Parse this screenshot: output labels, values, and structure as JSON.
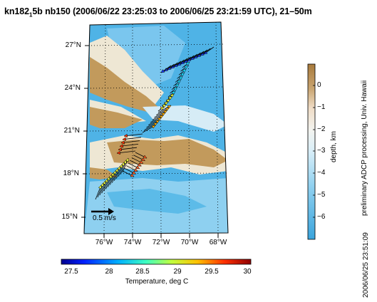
{
  "title": {
    "prefix": "kn182",
    "sub": "1",
    "rest": "5b nb150 (2006/06/22 23:25:03 to 2006/06/25 23:21:59 UTC), 21–50m"
  },
  "map": {
    "lat_labels": [
      "27°N",
      "24°N",
      "21°N",
      "18°N",
      "15°N"
    ],
    "lon_labels": [
      "76°W",
      "74°W",
      "72°W",
      "70°W",
      "68°W"
    ],
    "scale_arrow_label": "0.5 m/s",
    "colors": {
      "land": "#c29a5c",
      "shelf": "#eee7d4",
      "deep": "#4fb3e6",
      "mid": "#8ed0f0"
    }
  },
  "depth_colorbar": {
    "title": "depth, km",
    "ticks": [
      "0",
      "−1",
      "−2",
      "−3",
      "−4",
      "−5",
      "−6"
    ],
    "colors": [
      "#a87a3c",
      "#c9a571",
      "#efdcc6",
      "#e9f3f8",
      "#bfe3f4",
      "#79c7ea",
      "#3aa4dc"
    ]
  },
  "temperature_colorbar": {
    "title": "Temperature, deg C",
    "ticks": [
      "27.5",
      "28",
      "28.5",
      "29",
      "29.5",
      "30"
    ],
    "colors": [
      "#00008f",
      "#0040ff",
      "#00c0ff",
      "#40ffc0",
      "#c0ff40",
      "#ffc000",
      "#ff4000",
      "#8f0000"
    ]
  },
  "side_text": {
    "processing": "preliminary ADCP processing, Univ. Hawaii",
    "timestamp": "2006/06/25 23:51:09"
  }
}
